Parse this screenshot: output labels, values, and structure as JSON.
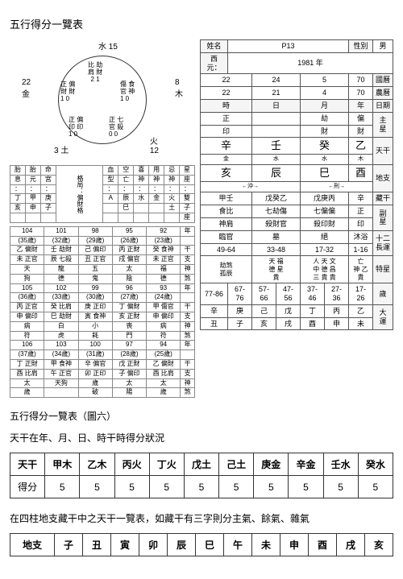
{
  "titles": {
    "main": "五行得分一覽表",
    "sub1": "五行得分一覽表（圖六）",
    "sub2": "天干在年、月、日、時干時得分狀況",
    "sub3": "在四柱地支藏干中之天干一覽表，如藏干有三字則分主氣、餘氣、雜氣"
  },
  "circle": {
    "top": "水",
    "top_num": "15",
    "right": "木",
    "right_num": "8",
    "br": "火",
    "br_num": "12",
    "bl": "土",
    "bl_num": "3",
    "left": "金",
    "left_num": "22",
    "inner": [
      "比 劫",
      "肩 財",
      "2  1",
      "傷 食",
      "官 神",
      "1  0",
      "正 七",
      "官 殺",
      "0  0",
      "正 偏",
      "印 印",
      "1  0",
      "正 偏",
      "財 財",
      "1  0"
    ]
  },
  "small_left": {
    "r1": [
      "胎",
      "胎",
      "命",
      "血",
      "空",
      "喜",
      "用",
      "忌",
      "星"
    ],
    "r2": [
      "息",
      "元",
      "宮",
      "型",
      "亡",
      "神",
      "神",
      "神",
      "座"
    ],
    "r3": [
      "：",
      "：",
      "：",
      "：",
      "：",
      "：",
      "：",
      "：",
      "："
    ],
    "r4": [
      "丁",
      "甲",
      "庚",
      "A",
      "辰",
      "水",
      "金",
      "火",
      "雙"
    ],
    "r5": [
      "亥",
      "申",
      "子",
      "",
      "巳",
      "",
      "",
      "土",
      "子"
    ],
    "r6": [
      "",
      "",
      "",
      "",
      "",
      "",
      "",
      "",
      "座"
    ],
    "rlabel": [
      "格",
      "局",
      "：",
      "偏",
      "財",
      "格"
    ]
  },
  "grid6": {
    "rows": [
      [
        "104",
        "101",
        "98",
        "95",
        "92",
        "年"
      ],
      [
        "(35歲)",
        "(32歲)",
        "(29歲)",
        "(26歲)",
        "(23歲)",
        ""
      ],
      [
        "乙 偏財",
        "壬 劫財",
        "己 偏印",
        "丙 正財",
        "癸 食神",
        "干"
      ],
      [
        "未 正官",
        "辰 七殺",
        "丑 正官",
        "戌 偏官",
        "未 正官",
        "支"
      ],
      [
        "天",
        "龍",
        "五",
        "太",
        "福",
        "神"
      ],
      [
        "狗",
        "德",
        "鬼",
        "陰",
        "德",
        "煞"
      ],
      [
        "105",
        "102",
        "99",
        "96",
        "93",
        "年"
      ],
      [
        "(36歲)",
        "(33歲)",
        "(30歲)",
        "(27歲)",
        "(24歲)",
        ""
      ],
      [
        "丙 正官",
        "癸 比肩",
        "庚 正印",
        "丁 偏財",
        "甲 傷官",
        "干"
      ],
      [
        "申 偏印",
        "巳 劫財",
        "寅 食神",
        "亥 正財",
        "申 偏印",
        "支"
      ],
      [
        "病",
        "白",
        "小",
        "喪",
        "病",
        "神"
      ],
      [
        "符",
        "虎",
        "耗",
        "門",
        "符",
        "煞"
      ],
      [
        "106",
        "103",
        "100",
        "97",
        "94",
        "年"
      ],
      [
        "(37歲)",
        "(34歲)",
        "(31歲)",
        "(28歲)",
        "(25歲)",
        ""
      ],
      [
        "丁 正財",
        "甲 食神",
        "辛 偏官",
        "戊 正財",
        "乙 偏財",
        "干"
      ],
      [
        "酉 比肩",
        "午 正官",
        "卯 正印",
        "子 偏印",
        "酉 比肩",
        "支"
      ],
      [
        "太",
        "天狗",
        "歲",
        "太",
        "太",
        "神"
      ],
      [
        "歲",
        "",
        "破",
        "陽",
        "歲",
        "煞"
      ]
    ]
  },
  "bazi": {
    "header": {
      "name_l": "姓名",
      "name_v": "P13",
      "sex_l": "性別",
      "sex_v": "男"
    },
    "year_row": {
      "l": "西元：",
      "v": "1981  年"
    },
    "greg": [
      "22",
      "24",
      "5",
      "70",
      "國曆"
    ],
    "lun": [
      "22",
      "21",
      "4",
      "70",
      "農曆"
    ],
    "hrow": [
      "時",
      "日",
      "月",
      "年",
      "日期"
    ],
    "main_l": [
      "正",
      "",
      "劫",
      "偏",
      "主"
    ],
    "main_l2": [
      "印",
      "",
      "財",
      "財",
      "星"
    ],
    "tg": [
      "辛",
      "壬",
      "癸",
      "乙",
      "天干"
    ],
    "tg_s": [
      "金",
      "水",
      "水",
      "木",
      ""
    ],
    "dz": [
      "亥",
      "辰",
      "巳",
      "酉",
      "地支"
    ],
    "dz_s": [
      "←沖→",
      "",
      "←刑→",
      ""
    ],
    "cang": [
      "甲壬",
      "戊癸乙",
      "戊庚丙",
      "辛",
      "藏干"
    ],
    "fu": [
      "食比",
      "七劫傷",
      "七偏偏",
      "正",
      "副"
    ],
    "fu2": [
      "神肩",
      "殺財官",
      "殺印財",
      "印",
      "星"
    ],
    "twelve": [
      "臨官",
      "墓",
      "絕",
      "沐浴",
      "十二"
    ],
    "twelve2": [
      "49-64",
      "33-48",
      "17-32",
      "1-16",
      "長運"
    ],
    "star": [
      "劫煞",
      "天 福",
      "人 天 文",
      "亡 ",
      "天"
    ],
    "star2": [
      "孤辰",
      "德 星",
      "中 德 昌",
      "神 乙",
      "德 貴"
    ],
    "star3": [
      "",
      "貴 ",
      "三 貴 貴",
      "貴 ",
      "人"
    ],
    "star4": [
      "",
      "人",
      "奇 人 人",
      "人",
      "特星"
    ],
    "star_l": [
      "",
      "",
      "",
      "",
      "神煞"
    ],
    "luck_age": [
      "77-86",
      "67-76",
      "57-66",
      "47-56",
      "37-46",
      "27-36",
      "17-26",
      "7-16",
      "歲"
    ],
    "luck_tg": [
      "辛",
      "庚",
      "己",
      "戊",
      "丁",
      "丙",
      "乙",
      "甲",
      "大"
    ],
    "luck_dz": [
      "丑",
      "子",
      "亥",
      "戌",
      "酉",
      "申",
      "未",
      "午",
      "運"
    ]
  },
  "tengan_tb": {
    "h": [
      "天干",
      "甲木",
      "乙木",
      "丙火",
      "丁火",
      "戊土",
      "己土",
      "庚金",
      "辛金",
      "壬水",
      "癸水"
    ],
    "r": [
      "得分",
      "5",
      "5",
      "5",
      "5",
      "5",
      "5",
      "5",
      "5",
      "5",
      "5"
    ]
  },
  "dizhi_tb": {
    "h": [
      "地支",
      "子",
      "丑",
      "寅",
      "卯",
      "辰",
      "巳",
      "午",
      "未",
      "申",
      "酉",
      "戌",
      "亥"
    ]
  },
  "colors": {
    "border": "#333333",
    "bg": "#ffffff"
  }
}
